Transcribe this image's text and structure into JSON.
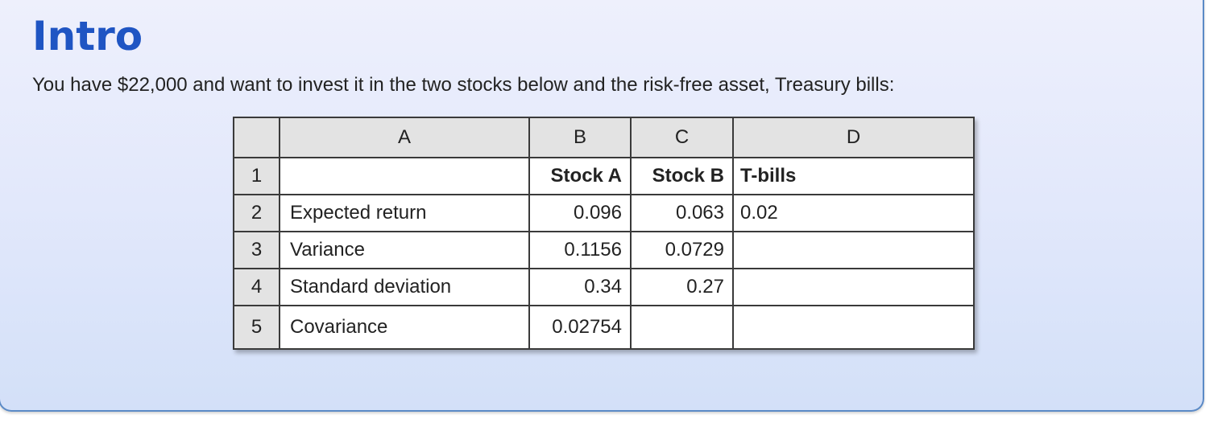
{
  "heading": "Intro",
  "intro_text": "You have $22,000 and want to invest it in the two stocks below and the risk-free asset, Treasury bills:",
  "spreadsheet": {
    "column_headers": [
      "A",
      "B",
      "C",
      "D"
    ],
    "rows": [
      {
        "num": "1",
        "a": "",
        "b": "Stock A",
        "c": "Stock B",
        "d": "T-bills"
      },
      {
        "num": "2",
        "a": "Expected return",
        "b": "0.096",
        "c": "0.063",
        "d": "0.02"
      },
      {
        "num": "3",
        "a": "Variance",
        "b": "0.1156",
        "c": "0.0729",
        "d": ""
      },
      {
        "num": "4",
        "a": "Standard deviation",
        "b": "0.34",
        "c": "0.27",
        "d": ""
      },
      {
        "num": "5",
        "a": "Covariance",
        "b": "0.02754",
        "c": "",
        "d": ""
      }
    ]
  },
  "colors": {
    "heading": "#1f55c3",
    "card_border": "#5b8ac6",
    "header_cell_bg": "#e3e3e3"
  }
}
